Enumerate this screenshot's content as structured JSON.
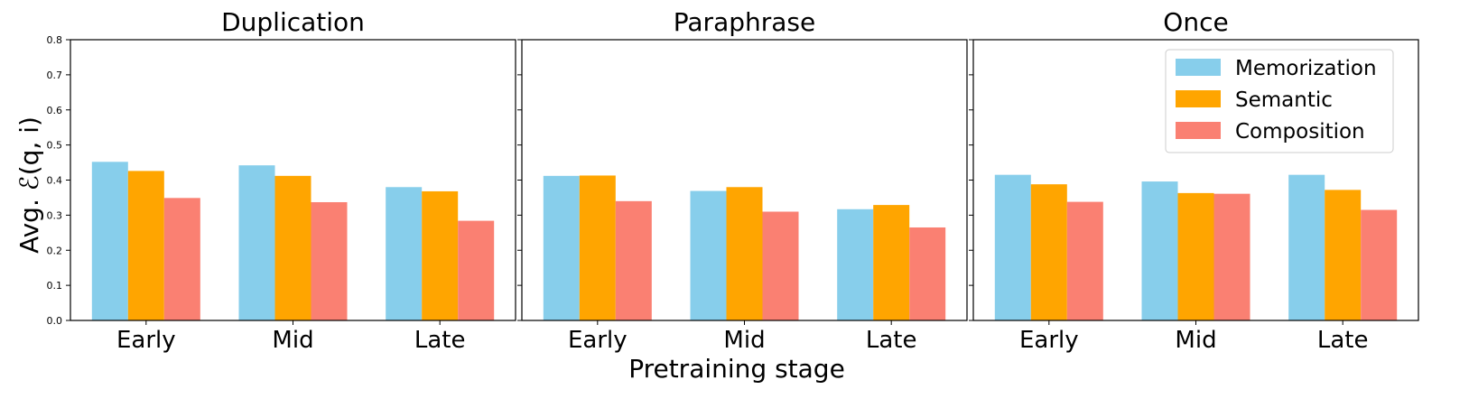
{
  "chart_data": {
    "type": "bar",
    "ylabel": "Avg. ℰ(q, i)",
    "xlabel": "Pretraining stage",
    "ylim": [
      0.0,
      0.8
    ],
    "yticks": [
      "0.0",
      "0.1",
      "0.2",
      "0.3",
      "0.4",
      "0.5",
      "0.6",
      "0.7",
      "0.8"
    ],
    "categories": [
      "Early",
      "Mid",
      "Late"
    ],
    "legend": {
      "placement": "top-right of last panel",
      "entries": [
        "Memorization",
        "Semantic",
        "Composition"
      ]
    },
    "colors": {
      "Memorization": "#87ceeb",
      "Semantic": "#ffa500",
      "Composition": "#fa8072"
    },
    "panels": [
      {
        "title": "Duplication",
        "series": [
          {
            "name": "Memorization",
            "values": [
              0.452,
              0.442,
              0.38
            ]
          },
          {
            "name": "Semantic",
            "values": [
              0.426,
              0.412,
              0.368
            ]
          },
          {
            "name": "Composition",
            "values": [
              0.349,
              0.337,
              0.284
            ]
          }
        ]
      },
      {
        "title": "Paraphrase",
        "series": [
          {
            "name": "Memorization",
            "values": [
              0.412,
              0.369,
              0.317
            ]
          },
          {
            "name": "Semantic",
            "values": [
              0.413,
              0.38,
              0.329
            ]
          },
          {
            "name": "Composition",
            "values": [
              0.34,
              0.31,
              0.265
            ]
          }
        ]
      },
      {
        "title": "Once",
        "series": [
          {
            "name": "Memorization",
            "values": [
              0.415,
              0.396,
              0.415
            ]
          },
          {
            "name": "Semantic",
            "values": [
              0.388,
              0.363,
              0.372
            ]
          },
          {
            "name": "Composition",
            "values": [
              0.338,
              0.361,
              0.315
            ]
          }
        ]
      }
    ]
  }
}
